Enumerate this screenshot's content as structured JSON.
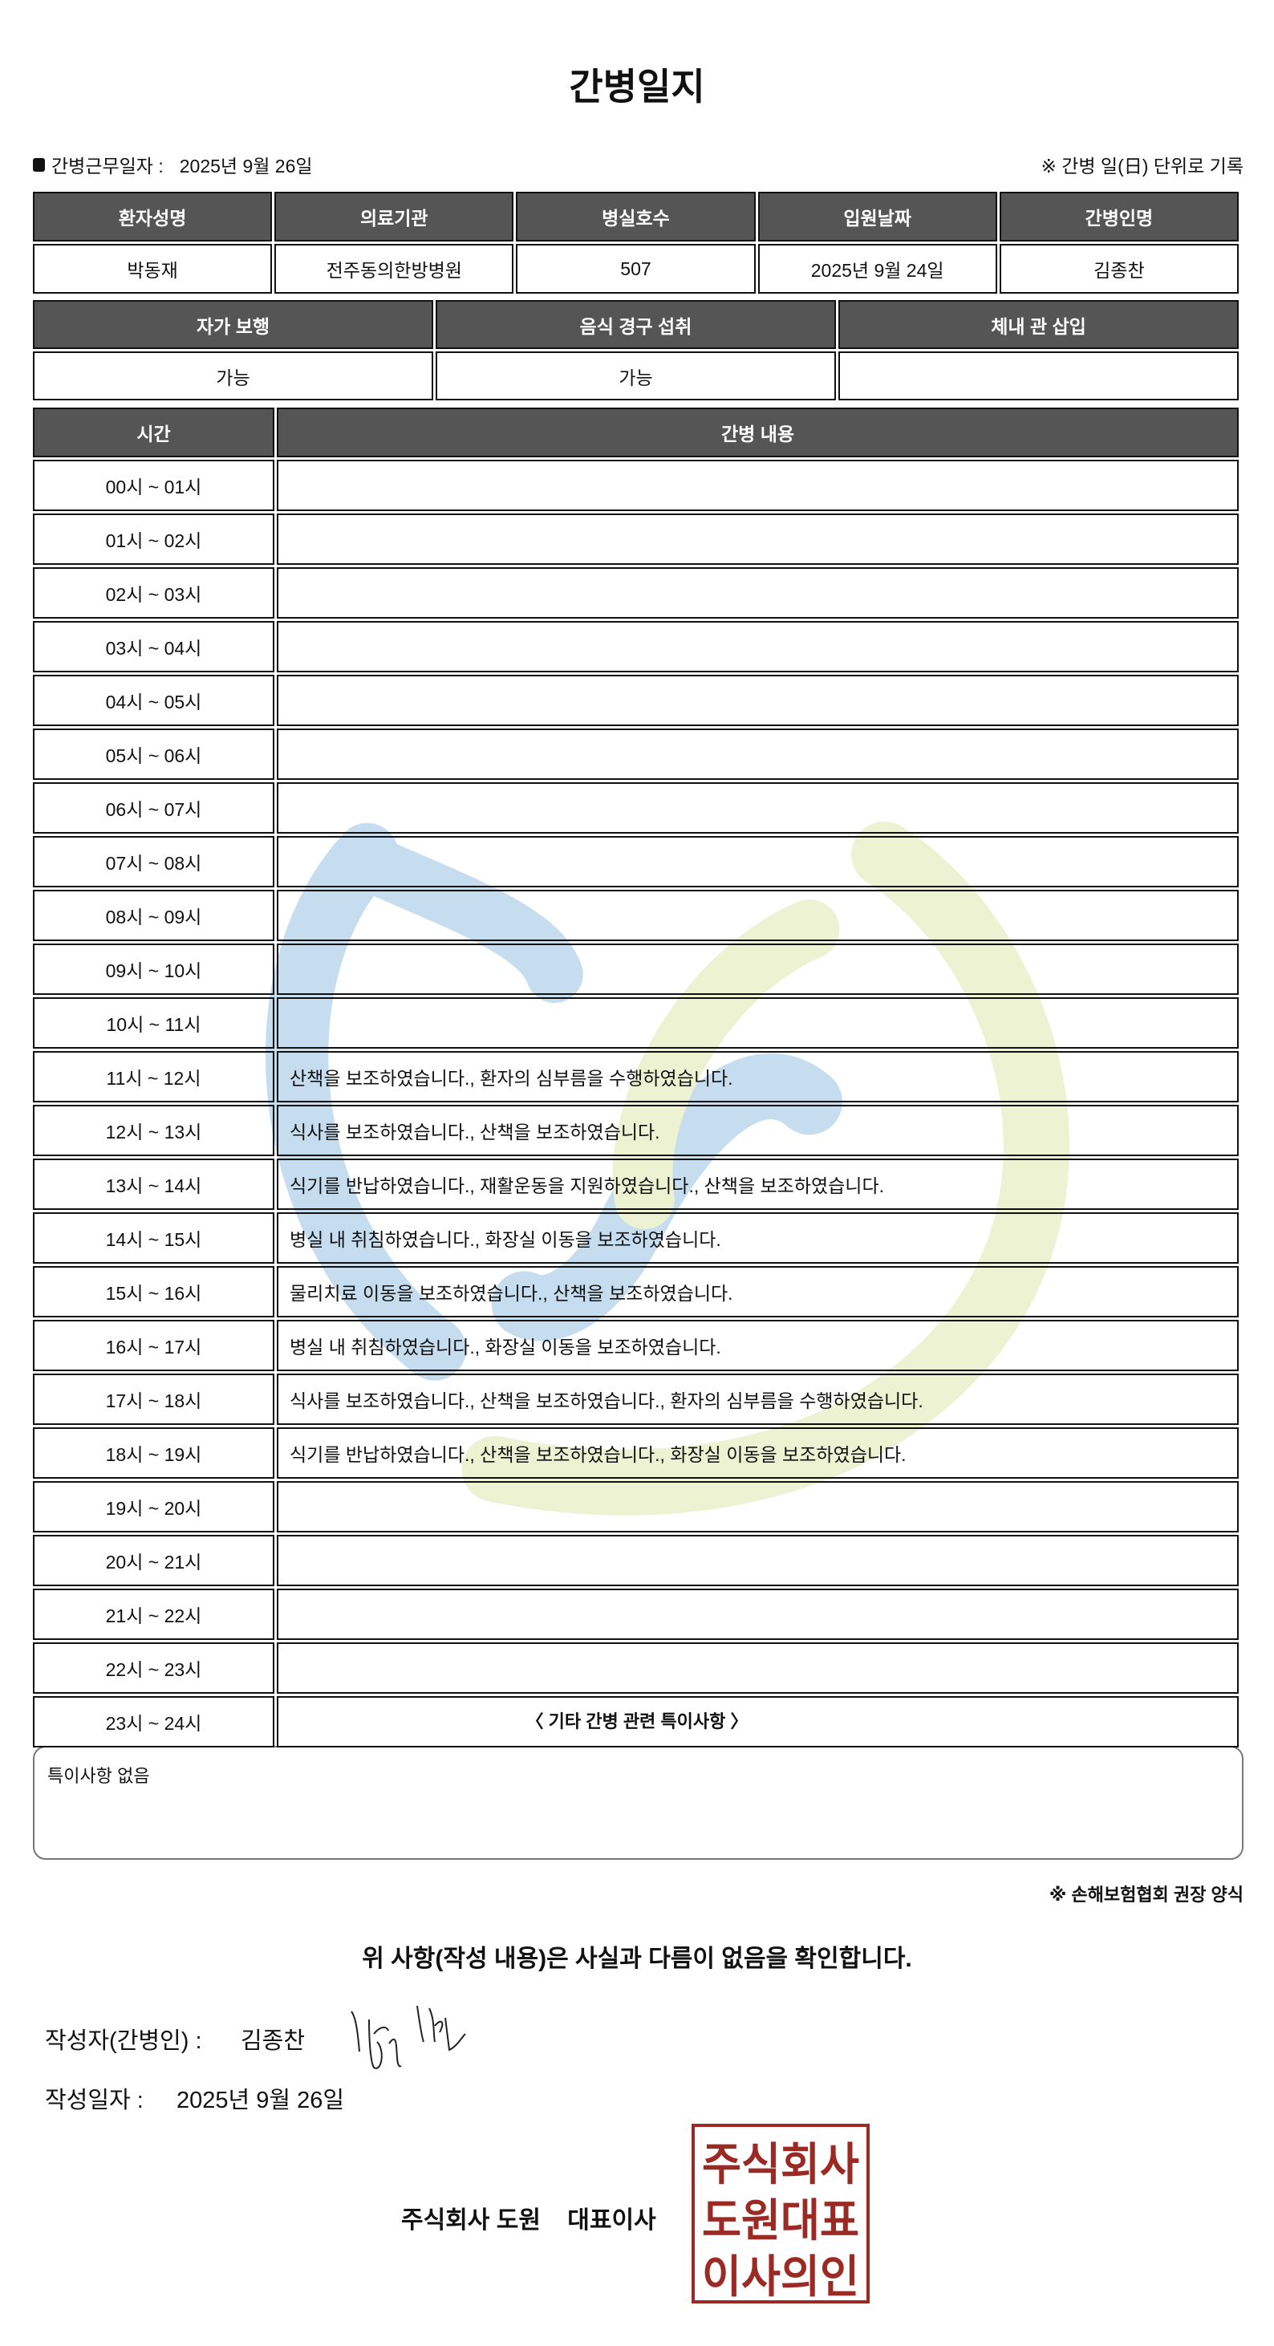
{
  "title": "간병일지",
  "work_date": {
    "label": "간병근무일자  :",
    "value": "2025년 9월 26일"
  },
  "unit_note": "※ 간병 일(日) 단위로 기록",
  "patient_table": {
    "headers": [
      "환자성명",
      "의료기관",
      "병실호수",
      "입원날짜",
      "간병인명"
    ],
    "values": [
      "박동재",
      "전주동의한방병원",
      "507",
      "2025년 9월 24일",
      "김종찬"
    ]
  },
  "status_table": {
    "headers": [
      "자가 보행",
      "음식 경구 섭취",
      "체내 관 삽입"
    ],
    "values": [
      "가능",
      "가능",
      ""
    ]
  },
  "care_table": {
    "headers": [
      "시간",
      "간병 내용"
    ],
    "rows": [
      {
        "time": "00시 ~ 01시",
        "content": ""
      },
      {
        "time": "01시 ~ 02시",
        "content": ""
      },
      {
        "time": "02시 ~ 03시",
        "content": ""
      },
      {
        "time": "03시 ~ 04시",
        "content": ""
      },
      {
        "time": "04시 ~ 05시",
        "content": ""
      },
      {
        "time": "05시 ~ 06시",
        "content": ""
      },
      {
        "time": "06시 ~ 07시",
        "content": ""
      },
      {
        "time": "07시 ~ 08시",
        "content": ""
      },
      {
        "time": "08시 ~ 09시",
        "content": ""
      },
      {
        "time": "09시 ~ 10시",
        "content": ""
      },
      {
        "time": "10시 ~ 11시",
        "content": ""
      },
      {
        "time": "11시 ~ 12시",
        "content": "산책을 보조하였습니다., 환자의 심부름을 수행하였습니다."
      },
      {
        "time": "12시 ~ 13시",
        "content": "식사를 보조하였습니다., 산책을 보조하였습니다."
      },
      {
        "time": "13시 ~ 14시",
        "content": "식기를 반납하였습니다., 재활운동을 지원하였습니다., 산책을 보조하였습니다."
      },
      {
        "time": "14시 ~ 15시",
        "content": "병실 내 취침하였습니다., 화장실 이동을 보조하였습니다."
      },
      {
        "time": "15시 ~ 16시",
        "content": "물리치료 이동을 보조하였습니다., 산책을 보조하였습니다."
      },
      {
        "time": "16시 ~ 17시",
        "content": "병실 내 취침하였습니다., 화장실 이동을 보조하였습니다."
      },
      {
        "time": "17시 ~ 18시",
        "content": "식사를 보조하였습니다., 산책을 보조하였습니다., 환자의 심부름을 수행하였습니다."
      },
      {
        "time": "18시 ~ 19시",
        "content": "식기를 반납하였습니다., 산책을 보조하였습니다., 화장실 이동을 보조하였습니다."
      },
      {
        "time": "19시 ~ 20시",
        "content": ""
      },
      {
        "time": "20시 ~ 21시",
        "content": ""
      },
      {
        "time": "21시 ~ 22시",
        "content": ""
      },
      {
        "time": "22시 ~ 23시",
        "content": ""
      },
      {
        "time": "23시 ~ 24시",
        "content": ""
      }
    ]
  },
  "special": {
    "title": "〈 기타 간병 관련 특이사항 〉",
    "text": "특이사항 없음"
  },
  "form_note": "※ 손해보험협회 권장 양식",
  "confirm": "위 사항(작성 내용)은 사실과 다름이 없음을 확인합니다.",
  "author": {
    "label": "작성자(간병인) :",
    "name": "김종찬",
    "signature_text": "김종찬"
  },
  "written_date": {
    "label": "작성일자 :",
    "value": "2025년 9월 26일"
  },
  "company": "주식회사 도원    대표이사",
  "stamp": {
    "text": [
      "주식회사",
      "도원대표",
      "이사의인"
    ],
    "color": "#9b2a25"
  },
  "colors": {
    "header_bg": "#555555",
    "watermark_blue": "#b9d6ec",
    "watermark_green": "#e6efc4"
  }
}
